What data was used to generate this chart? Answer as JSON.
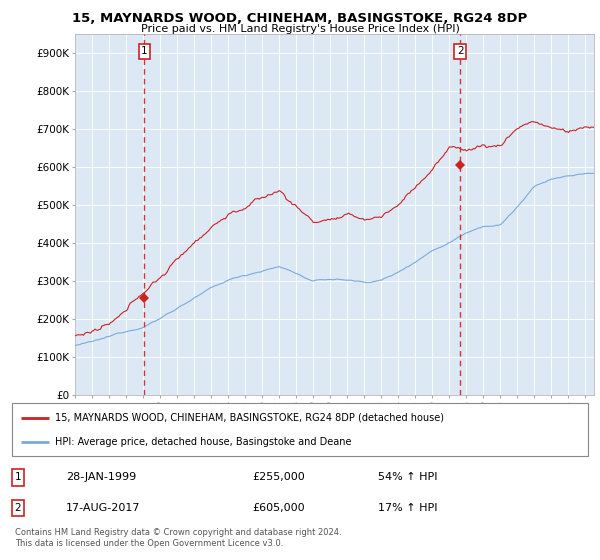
{
  "title": "15, MAYNARDS WOOD, CHINEHAM, BASINGSTOKE, RG24 8DP",
  "subtitle": "Price paid vs. HM Land Registry's House Price Index (HPI)",
  "background_color": "#ffffff",
  "plot_bg_color": "#dce9f5",
  "grid_color": "#ffffff",
  "ylim": [
    0,
    950000
  ],
  "yticks": [
    0,
    100000,
    200000,
    300000,
    400000,
    500000,
    600000,
    700000,
    800000,
    900000
  ],
  "ytick_labels": [
    "£0",
    "£100K",
    "£200K",
    "£300K",
    "£400K",
    "£500K",
    "£600K",
    "£700K",
    "£800K",
    "£900K"
  ],
  "sale1_date_num": 1999.08,
  "sale1_price": 255000,
  "sale1_date_str": "28-JAN-1999",
  "sale1_pct": "54% ↑ HPI",
  "sale2_date_num": 2017.63,
  "sale2_price": 605000,
  "sale2_date_str": "17-AUG-2017",
  "sale2_pct": "17% ↑ HPI",
  "line_red_color": "#cc2222",
  "line_blue_color": "#7aaadd",
  "vline_color": "#cc2222",
  "legend_label_red": "15, MAYNARDS WOOD, CHINEHAM, BASINGSTOKE, RG24 8DP (detached house)",
  "legend_label_blue": "HPI: Average price, detached house, Basingstoke and Deane",
  "footer": "Contains HM Land Registry data © Crown copyright and database right 2024.\nThis data is licensed under the Open Government Licence v3.0.",
  "xmin": 1995.0,
  "xmax": 2025.5,
  "xticks": [
    1995,
    1996,
    1997,
    1998,
    1999,
    2000,
    2001,
    2002,
    2003,
    2004,
    2005,
    2006,
    2007,
    2008,
    2009,
    2010,
    2011,
    2012,
    2013,
    2014,
    2015,
    2016,
    2017,
    2018,
    2019,
    2020,
    2021,
    2022,
    2023,
    2024,
    2025
  ],
  "hpi_base": [
    130000,
    137000,
    148000,
    163000,
    178000,
    200000,
    228000,
    255000,
    278000,
    298000,
    312000,
    325000,
    335000,
    318000,
    295000,
    300000,
    298000,
    292000,
    298000,
    318000,
    348000,
    378000,
    400000,
    428000,
    448000,
    450000,
    498000,
    548000,
    568000,
    575000,
    580000
  ],
  "prop_base": [
    155000,
    165000,
    175000,
    200000,
    255000,
    295000,
    340000,
    390000,
    435000,
    470000,
    490000,
    510000,
    530000,
    490000,
    450000,
    460000,
    460000,
    450000,
    460000,
    490000,
    540000,
    590000,
    640000,
    640000,
    650000,
    650000,
    700000,
    720000,
    700000,
    690000,
    700000
  ]
}
